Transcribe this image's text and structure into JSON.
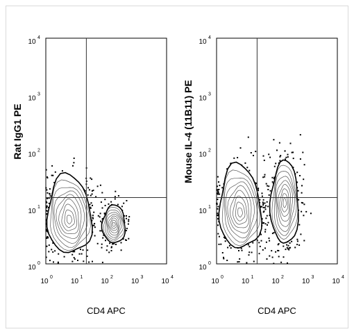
{
  "chart_data": [
    {
      "type": "scatter",
      "subtype": "flow-cytometry-contour",
      "title": "",
      "xlabel": "CD4 APC",
      "ylabel": "Rat IgG1 PE",
      "x_scale": "log",
      "y_scale": "log",
      "xlim": [
        1,
        10000
      ],
      "ylim": [
        1,
        10000
      ],
      "x_ticks": [
        "10",
        "10",
        "10",
        "10",
        "10"
      ],
      "x_tick_exponents": [
        "0",
        "1",
        "2",
        "3",
        "4"
      ],
      "y_ticks": [
        "10",
        "10",
        "10",
        "10",
        "10"
      ],
      "y_tick_exponents": [
        "0",
        "1",
        "2",
        "3",
        "4"
      ],
      "gate": {
        "x": 22,
        "y": 15
      },
      "populations": [
        {
          "center": [
            6,
            6
          ],
          "spread": [
            0.35,
            0.28
          ],
          "events": 650
        },
        {
          "center": [
            180,
            5
          ],
          "spread": [
            0.18,
            0.16
          ],
          "events": 260
        }
      ],
      "grid": false
    },
    {
      "type": "scatter",
      "subtype": "flow-cytometry-contour",
      "title": "",
      "xlabel": "CD4 APC",
      "ylabel": "Mouse IL-4 (11B11) PE",
      "x_scale": "log",
      "y_scale": "log",
      "xlim": [
        1,
        10000
      ],
      "ylim": [
        1,
        10000
      ],
      "x_ticks": [
        "10",
        "10",
        "10",
        "10",
        "10"
      ],
      "x_tick_exponents": [
        "0",
        "1",
        "2",
        "3",
        "4"
      ],
      "y_ticks": [
        "10",
        "10",
        "10",
        "10",
        "10"
      ],
      "y_tick_exponents": [
        "0",
        "1",
        "2",
        "3",
        "4"
      ],
      "gate": {
        "x": 22,
        "y": 15
      },
      "populations": [
        {
          "center": [
            6,
            8
          ],
          "spread": [
            0.33,
            0.3
          ],
          "events": 650
        },
        {
          "center": [
            180,
            12
          ],
          "spread": [
            0.22,
            0.35
          ],
          "events": 380
        }
      ],
      "grid": false
    }
  ]
}
